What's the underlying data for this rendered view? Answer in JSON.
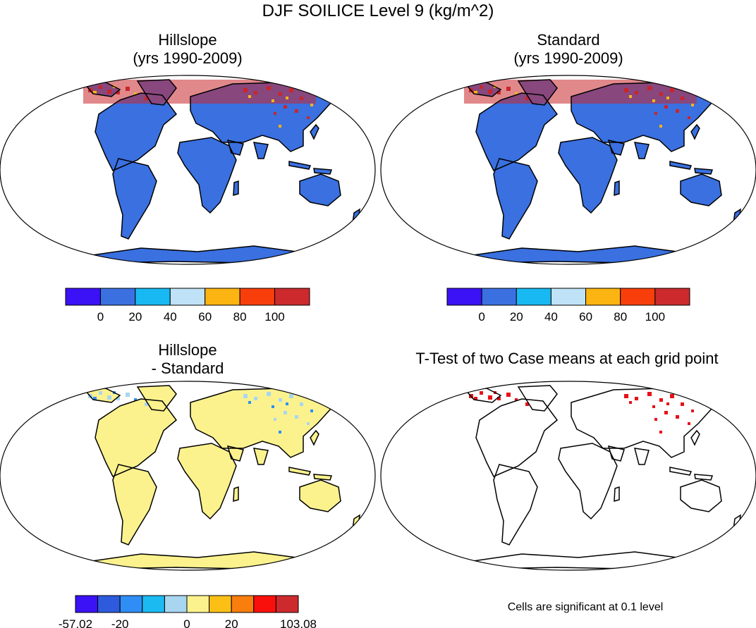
{
  "figure": {
    "title": "DJF SOILICE Level 9 (kg/m^2)",
    "footnote": "Cells are significant at 0.1 level"
  },
  "panels": [
    {
      "id": "hillslope",
      "title_line1": "Hillslope",
      "title_line2": "(yrs 1990-2009)"
    },
    {
      "id": "standard",
      "title_line1": "Standard",
      "title_line2": "(yrs 1990-2009)"
    },
    {
      "id": "difference",
      "title_line1": "Hillslope",
      "title_line2": "- Standard"
    },
    {
      "id": "ttest",
      "title_line1": "T-Test of two Case means at each grid point"
    }
  ],
  "colors": {
    "land_low": "#3a70e0",
    "diff_land": "#fbf28e",
    "sig": "#e8101a",
    "ice_hi": "#c8262b"
  },
  "chart_data": [
    {
      "type": "heatmap",
      "title": "Hillslope (yrs 1990-2009)",
      "units": "kg/m^2",
      "projection": "Robinson",
      "colorbar": {
        "colors": [
          "#3b12f5",
          "#3a70e0",
          "#18b9f2",
          "#bfe2f7",
          "#fbb411",
          "#f83f0b",
          "#cc2a2d"
        ],
        "tick_labels": [
          "0",
          "20",
          "40",
          "60",
          "80",
          "100"
        ],
        "tick_values": [
          0,
          20,
          40,
          60,
          80,
          100
        ]
      }
    },
    {
      "type": "heatmap",
      "title": "Standard (yrs 1990-2009)",
      "units": "kg/m^2",
      "projection": "Robinson",
      "colorbar": {
        "colors": [
          "#3b12f5",
          "#3a70e0",
          "#18b9f2",
          "#bfe2f7",
          "#fbb411",
          "#f83f0b",
          "#cc2a2d"
        ],
        "tick_labels": [
          "0",
          "20",
          "40",
          "60",
          "80",
          "100"
        ],
        "tick_values": [
          0,
          20,
          40,
          60,
          80,
          100
        ]
      }
    },
    {
      "type": "heatmap",
      "title": "Hillslope - Standard",
      "units": "kg/m^2",
      "projection": "Robinson",
      "colorbar": {
        "colors": [
          "#3b12f5",
          "#2e5bde",
          "#2f8ef5",
          "#1bbbf2",
          "#a8d6f0",
          "#fbf28e",
          "#fbbf16",
          "#f97e0e",
          "#f9100c",
          "#cc2a2d"
        ],
        "tick_labels": [
          "-57.02",
          "-20",
          "0",
          "20",
          "103.08"
        ],
        "tick_values": [
          -57.02,
          -20,
          0,
          20,
          103.08
        ],
        "min": -57.02,
        "max": 103.08
      }
    },
    {
      "type": "heatmap",
      "title": "T-Test of two Case means at each grid point",
      "significance_level": 0.1,
      "legend_text": "Cells are significant at 0.1 level"
    }
  ]
}
